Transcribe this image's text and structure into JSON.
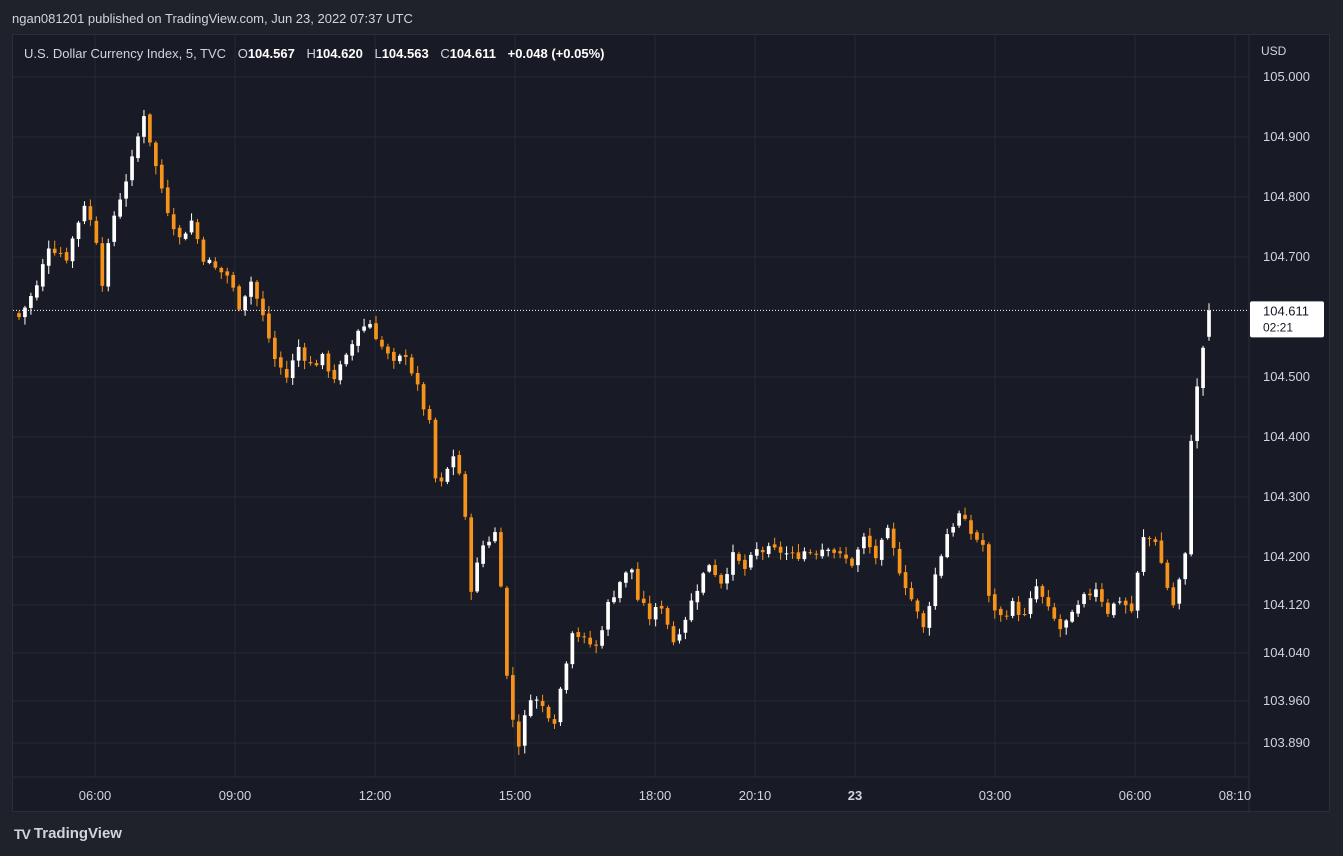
{
  "header": {
    "published_text": "ngan081201 published on TradingView.com, Jun 23, 2022 07:37 UTC"
  },
  "legend": {
    "symbol": "U.S. Dollar Currency Index, 5, TVC",
    "o_label": "O",
    "o_value": "104.567",
    "h_label": "H",
    "h_value": "104.620",
    "l_label": "L",
    "l_value": "104.563",
    "c_label": "C",
    "c_value": "104.611",
    "change": "+0.048 (+0.05%)"
  },
  "price_axis": {
    "currency": "USD",
    "last_price": "104.611",
    "countdown": "02:21"
  },
  "footer": {
    "logo_text": "TradingView",
    "logo_mark": "TV"
  },
  "colors": {
    "up": "#ffffff",
    "down": "#f7931a",
    "background": "#181b25",
    "grid": "#242833"
  },
  "chart_data": {
    "type": "candlestick",
    "title": "U.S. Dollar Currency Index, 5, TVC",
    "timeframe": "5",
    "x_ticks": [
      "06:00",
      "09:00",
      "12:00",
      "15:00",
      "18:00",
      "20:10",
      "23",
      "03:00",
      "06:00",
      "08:10"
    ],
    "y_ticks": [
      "105.000",
      "104.900",
      "104.800",
      "104.700",
      "104.500",
      "104.400",
      "104.300",
      "104.200",
      "104.120",
      "104.040",
      "103.960",
      "103.890"
    ],
    "y_axis_label": "USD",
    "last_price": 104.611,
    "close_path": [
      [
        0,
        104.6
      ],
      [
        3,
        104.65
      ],
      [
        5,
        104.72
      ],
      [
        8,
        104.7
      ],
      [
        11,
        104.79
      ],
      [
        13,
        104.73
      ],
      [
        14,
        104.66
      ],
      [
        16,
        104.77
      ],
      [
        19,
        104.86
      ],
      [
        21,
        104.94
      ],
      [
        23,
        104.85
      ],
      [
        25,
        104.78
      ],
      [
        27,
        104.73
      ],
      [
        29,
        104.76
      ],
      [
        31,
        104.7
      ],
      [
        33,
        104.68
      ],
      [
        35,
        104.67
      ],
      [
        37,
        104.62
      ],
      [
        39,
        104.66
      ],
      [
        41,
        104.6
      ],
      [
        43,
        104.53
      ],
      [
        45,
        104.5
      ],
      [
        47,
        104.55
      ],
      [
        49,
        104.52
      ],
      [
        51,
        104.53
      ],
      [
        53,
        104.5
      ],
      [
        55,
        104.53
      ],
      [
        57,
        104.58
      ],
      [
        59,
        104.59
      ],
      [
        61,
        104.55
      ],
      [
        63,
        104.52
      ],
      [
        65,
        104.54
      ],
      [
        67,
        104.48
      ],
      [
        69,
        104.42
      ],
      [
        70,
        104.33
      ],
      [
        71,
        104.32
      ],
      [
        73,
        104.37
      ],
      [
        74,
        104.34
      ],
      [
        75,
        104.26
      ],
      [
        76,
        104.15
      ],
      [
        78,
        104.22
      ],
      [
        80,
        104.24
      ],
      [
        81,
        104.16
      ],
      [
        82,
        104.0
      ],
      [
        83,
        103.93
      ],
      [
        84,
        103.89
      ],
      [
        86,
        103.97
      ],
      [
        88,
        103.95
      ],
      [
        90,
        103.93
      ],
      [
        91,
        103.98
      ],
      [
        93,
        104.08
      ],
      [
        95,
        104.06
      ],
      [
        97,
        104.05
      ],
      [
        99,
        104.12
      ],
      [
        101,
        104.16
      ],
      [
        103,
        104.18
      ],
      [
        104,
        104.13
      ],
      [
        106,
        104.1
      ],
      [
        108,
        104.12
      ],
      [
        110,
        104.06
      ],
      [
        112,
        104.1
      ],
      [
        114,
        104.15
      ],
      [
        116,
        104.19
      ],
      [
        118,
        104.16
      ],
      [
        120,
        104.2
      ],
      [
        122,
        104.18
      ],
      [
        124,
        104.21
      ],
      [
        126,
        104.21
      ],
      [
        128,
        104.21
      ],
      [
        130,
        104.2
      ],
      [
        132,
        104.21
      ],
      [
        134,
        104.21
      ],
      [
        136,
        104.22
      ],
      [
        138,
        104.2
      ],
      [
        140,
        104.19
      ],
      [
        142,
        104.23
      ],
      [
        144,
        104.2
      ],
      [
        146,
        104.24
      ],
      [
        148,
        104.18
      ],
      [
        150,
        104.13
      ],
      [
        152,
        104.08
      ],
      [
        154,
        104.17
      ],
      [
        156,
        104.24
      ],
      [
        158,
        104.27
      ],
      [
        160,
        104.24
      ],
      [
        162,
        104.22
      ],
      [
        163,
        104.13
      ],
      [
        165,
        104.1
      ],
      [
        167,
        104.12
      ],
      [
        169,
        104.1
      ],
      [
        171,
        104.15
      ],
      [
        173,
        104.11
      ],
      [
        175,
        104.08
      ],
      [
        177,
        104.1
      ],
      [
        179,
        104.13
      ],
      [
        181,
        104.15
      ],
      [
        183,
        104.11
      ],
      [
        185,
        104.13
      ],
      [
        187,
        104.11
      ],
      [
        189,
        104.23
      ],
      [
        191,
        104.23
      ],
      [
        193,
        104.15
      ],
      [
        194,
        104.12
      ],
      [
        196,
        104.2
      ],
      [
        197,
        104.4
      ],
      [
        198,
        104.48
      ],
      [
        199,
        104.55
      ],
      [
        200,
        104.611
      ]
    ]
  }
}
